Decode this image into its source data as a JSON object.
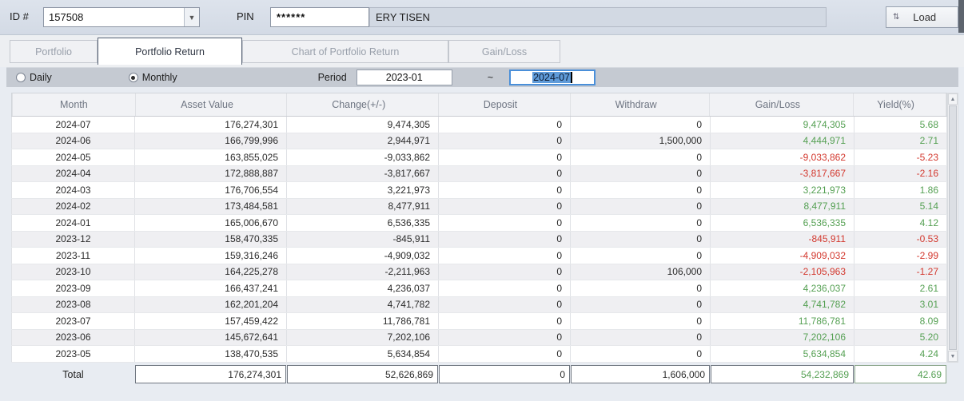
{
  "header": {
    "id_label": "ID #",
    "id_value": "157508",
    "pin_label": "PIN",
    "pin_value": "******",
    "name_value": "ERY TISEN",
    "load_icon": "⇅",
    "load_label": "Load"
  },
  "tabs": [
    {
      "label": "Portfolio",
      "active": false
    },
    {
      "label": "Portfolio Return",
      "active": true
    },
    {
      "label": "Chart of Portfolio Return",
      "active": false
    },
    {
      "label": "Gain/Loss",
      "active": false
    }
  ],
  "controls": {
    "daily_label": "Daily",
    "monthly_label": "Monthly",
    "selected_mode": "Monthly",
    "period_label": "Period",
    "period_from": "2023-01",
    "tilde": "~",
    "period_to": "2024-07"
  },
  "table": {
    "columns": [
      "Month",
      "Asset Value",
      "Change(+/-)",
      "Deposit",
      "Withdraw",
      "Gain/Loss",
      "Yield(%)"
    ],
    "rows": [
      [
        "2024-07",
        "176,274,301",
        "9,474,305",
        "0",
        "0",
        "9,474,305",
        "5.68"
      ],
      [
        "2024-06",
        "166,799,996",
        "2,944,971",
        "0",
        "1,500,000",
        "4,444,971",
        "2.71"
      ],
      [
        "2024-05",
        "163,855,025",
        "-9,033,862",
        "0",
        "0",
        "-9,033,862",
        "-5.23"
      ],
      [
        "2024-04",
        "172,888,887",
        "-3,817,667",
        "0",
        "0",
        "-3,817,667",
        "-2.16"
      ],
      [
        "2024-03",
        "176,706,554",
        "3,221,973",
        "0",
        "0",
        "3,221,973",
        "1.86"
      ],
      [
        "2024-02",
        "173,484,581",
        "8,477,911",
        "0",
        "0",
        "8,477,911",
        "5.14"
      ],
      [
        "2024-01",
        "165,006,670",
        "6,536,335",
        "0",
        "0",
        "6,536,335",
        "4.12"
      ],
      [
        "2023-12",
        "158,470,335",
        "-845,911",
        "0",
        "0",
        "-845,911",
        "-0.53"
      ],
      [
        "2023-11",
        "159,316,246",
        "-4,909,032",
        "0",
        "0",
        "-4,909,032",
        "-2.99"
      ],
      [
        "2023-10",
        "164,225,278",
        "-2,211,963",
        "0",
        "106,000",
        "-2,105,963",
        "-1.27"
      ],
      [
        "2023-09",
        "166,437,241",
        "4,236,037",
        "0",
        "0",
        "4,236,037",
        "2.61"
      ],
      [
        "2023-08",
        "162,201,204",
        "4,741,782",
        "0",
        "0",
        "4,741,782",
        "3.01"
      ],
      [
        "2023-07",
        "157,459,422",
        "11,786,781",
        "0",
        "0",
        "11,786,781",
        "8.09"
      ],
      [
        "2023-06",
        "145,672,641",
        "7,202,106",
        "0",
        "0",
        "7,202,106",
        "5.20"
      ],
      [
        "2023-05",
        "138,470,535",
        "5,634,854",
        "0",
        "0",
        "5,634,854",
        "4.24"
      ]
    ],
    "total": {
      "label": "Total",
      "values": [
        "176,274,301",
        "52,626,869",
        "0",
        "1,606,000",
        "54,232,869",
        "42.69"
      ]
    }
  },
  "scrollbar": {
    "up_icon": "▲",
    "down_icon": "▼"
  },
  "colors": {
    "positive": "#55a053",
    "negative": "#d3392f"
  }
}
